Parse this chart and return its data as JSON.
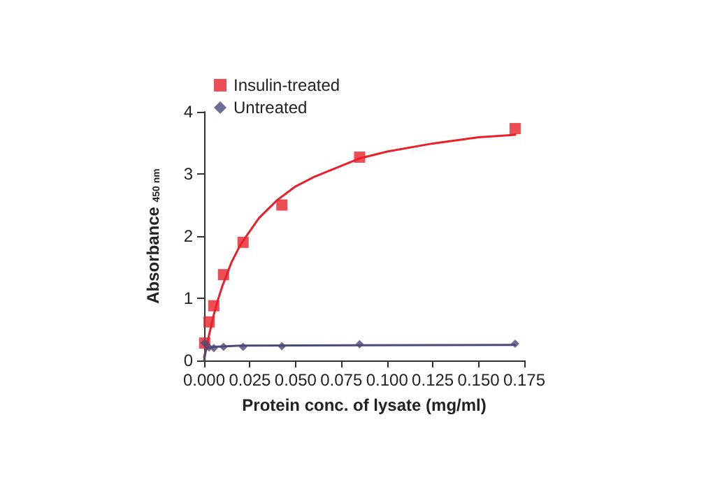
{
  "chart_data": {
    "type": "scatter",
    "xlabel": "Protein conc. of lysate (mg/ml)",
    "ylabel": "Absorbance $_{450 nm}$",
    "xlim": [
      0,
      0.175
    ],
    "ylim": [
      0,
      4
    ],
    "xticks": [
      {
        "value": 0,
        "label": "0.000"
      },
      {
        "value": 0.025,
        "label": "0.025"
      },
      {
        "value": 0.05,
        "label": "0.050"
      },
      {
        "value": 0.075,
        "label": "0.075"
      },
      {
        "value": 0.1,
        "label": "0.100"
      },
      {
        "value": 0.125,
        "label": "0.125"
      },
      {
        "value": 0.15,
        "label": "0.150"
      },
      {
        "value": 0.175,
        "label": "0.175"
      }
    ],
    "yticks": [
      0,
      1,
      2,
      3,
      4
    ],
    "grid": false,
    "legend": "top left",
    "series": [
      {
        "name": "Insulin-treated",
        "color": "#e8202a",
        "marker": "square",
        "x": [
          0.0003,
          0.0027,
          0.0053,
          0.0106,
          0.0213,
          0.0425,
          0.085,
          0.17
        ],
        "values": [
          0.28,
          0.62,
          0.88,
          1.38,
          1.9,
          2.5,
          3.27,
          3.73
        ]
      },
      {
        "name": "Untreated",
        "color": "#4a4a7a",
        "marker": "diamond",
        "x": [
          0.0003,
          0.0027,
          0.0053,
          0.0106,
          0.0213,
          0.0425,
          0.085,
          0.17
        ],
        "values": [
          0.28,
          0.21,
          0.2,
          0.22,
          0.22,
          0.23,
          0.26,
          0.27
        ]
      },
      {
        "type": "line",
        "color": "#e8202a",
        "marker": "none",
        "x": [
          0,
          0.0025,
          0.005,
          0.0075,
          0.01,
          0.015,
          0.02,
          0.03,
          0.04,
          0.05,
          0.06,
          0.075,
          0.085,
          0.1,
          0.125,
          0.15,
          0.17
        ],
        "values": [
          0.05,
          0.38,
          0.7,
          0.97,
          1.2,
          1.58,
          1.87,
          2.29,
          2.58,
          2.8,
          2.95,
          3.13,
          3.25,
          3.36,
          3.49,
          3.59,
          3.63
        ]
      },
      {
        "type": "line",
        "color": "#4a4a7a",
        "marker": "none",
        "x": [
          0,
          0.001,
          0.002,
          0.005,
          0.02,
          0.17
        ],
        "values": [
          0,
          0.17,
          0.2,
          0.22,
          0.24,
          0.25
        ]
      }
    ]
  }
}
